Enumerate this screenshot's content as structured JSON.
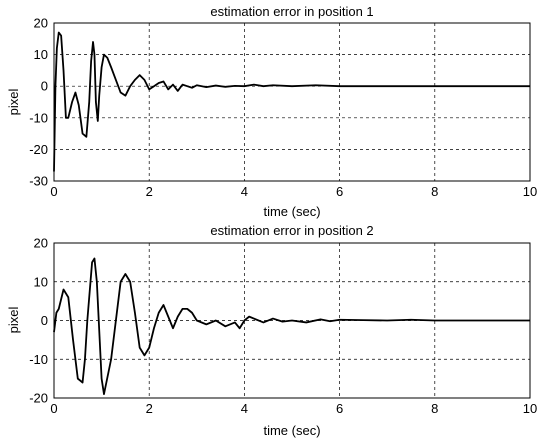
{
  "chart_data": [
    {
      "type": "line",
      "title": "estimation error in position 1",
      "xlabel": "time (sec)",
      "ylabel": "pixel",
      "xlim": [
        0,
        10
      ],
      "ylim": [
        -30,
        20
      ],
      "xticks": [
        0,
        2,
        4,
        6,
        8,
        10
      ],
      "yticks": [
        -30,
        -20,
        -10,
        0,
        10,
        20
      ],
      "grid": true,
      "series": [
        {
          "x": [
            0,
            0.03,
            0.06,
            0.1,
            0.15,
            0.2,
            0.25,
            0.3,
            0.38,
            0.45,
            0.52,
            0.6,
            0.68,
            0.74,
            0.78,
            0.82,
            0.85,
            0.88,
            0.92,
            0.95,
            1.0,
            1.05,
            1.12,
            1.2,
            1.3,
            1.4,
            1.5,
            1.6,
            1.7,
            1.8,
            1.9,
            2.0,
            2.1,
            2.2,
            2.3,
            2.4,
            2.5,
            2.6,
            2.7,
            2.8,
            2.9,
            3.0,
            3.2,
            3.4,
            3.6,
            3.8,
            4.0,
            4.2,
            4.4,
            4.6,
            5.0,
            5.5,
            6.0,
            7.0,
            8.0,
            9.0,
            10.0
          ],
          "y": [
            -27,
            0,
            12,
            17,
            16,
            5,
            -10,
            -10,
            -5,
            -2,
            -6,
            -15,
            -16,
            -5,
            8,
            14,
            10,
            -5,
            -11,
            -3,
            6,
            10,
            9,
            6,
            2,
            -2,
            -3,
            0,
            2,
            3.5,
            2,
            -1,
            0,
            1,
            1.5,
            -1,
            0.5,
            -1.5,
            0.5,
            0,
            -0.5,
            0.3,
            -0.3,
            0.2,
            -0.2,
            0.1,
            0,
            0.5,
            0,
            0.3,
            0,
            0.3,
            0,
            0,
            0,
            0,
            0
          ]
        }
      ]
    },
    {
      "type": "line",
      "title": "estimation error in position 2",
      "xlabel": "time (sec)",
      "ylabel": "pixel",
      "xlim": [
        0,
        10
      ],
      "ylim": [
        -20,
        20
      ],
      "xticks": [
        0,
        2,
        4,
        6,
        8,
        10
      ],
      "yticks": [
        -20,
        -10,
        0,
        10,
        20
      ],
      "grid": true,
      "series": [
        {
          "x": [
            0,
            0.05,
            0.1,
            0.2,
            0.3,
            0.4,
            0.5,
            0.6,
            0.65,
            0.7,
            0.8,
            0.85,
            0.9,
            1.0,
            1.05,
            1.1,
            1.2,
            1.3,
            1.4,
            1.5,
            1.6,
            1.7,
            1.8,
            1.9,
            2.0,
            2.1,
            2.2,
            2.3,
            2.4,
            2.5,
            2.6,
            2.7,
            2.8,
            2.9,
            3.0,
            3.2,
            3.4,
            3.6,
            3.8,
            3.9,
            4.0,
            4.1,
            4.2,
            4.4,
            4.6,
            4.8,
            5.0,
            5.3,
            5.6,
            5.8,
            6.0,
            6.5,
            7.0,
            7.5,
            8.0,
            9.0,
            10.0
          ],
          "y": [
            -3,
            2,
            3,
            8,
            6,
            -5,
            -15,
            -16,
            -10,
            0,
            15,
            16,
            10,
            -15,
            -19,
            -16,
            -10,
            0,
            10,
            12,
            10,
            2,
            -7,
            -9,
            -7,
            -2,
            2,
            4,
            1,
            -2,
            1,
            3,
            3,
            2,
            0,
            -1,
            0,
            -1.5,
            -0.5,
            -2,
            0,
            1,
            0.5,
            -0.5,
            0.5,
            -0.3,
            0,
            -0.5,
            0.3,
            -0.2,
            0.2,
            0.1,
            0,
            0.2,
            0,
            0,
            0
          ]
        }
      ]
    }
  ]
}
